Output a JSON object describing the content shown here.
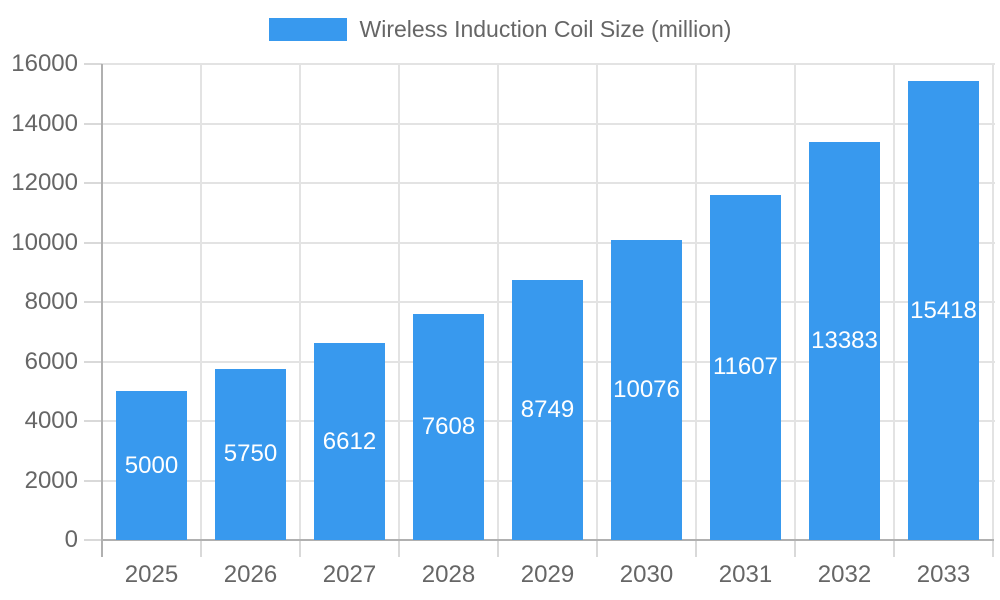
{
  "chart_data": {
    "type": "bar",
    "title": "Wireless Induction Coil Size (million)",
    "categories": [
      "2025",
      "2026",
      "2027",
      "2028",
      "2029",
      "2030",
      "2031",
      "2032",
      "2033"
    ],
    "series": [
      {
        "name": "Wireless Induction Coil Size (million)",
        "values": [
          5000,
          5750,
          6612,
          7608,
          8749,
          10076,
          11607,
          13383,
          15418
        ]
      }
    ],
    "value_labels": [
      "5000",
      "5750",
      "6612",
      "7608",
      "8749",
      "10076",
      "11607",
      "13383",
      "15418"
    ],
    "xlabel": "",
    "ylabel": "",
    "ylim": [
      0,
      16000
    ],
    "ytick_step": 2000,
    "ytick_labels": [
      "0",
      "2000",
      "4000",
      "6000",
      "8000",
      "10000",
      "12000",
      "14000",
      "16000"
    ],
    "grid": true,
    "legend_position": "top",
    "colors": {
      "bar": "#3899ee",
      "axis_text": "#666666",
      "value_text": "#ffffff",
      "gridline": "#e3e3e3",
      "tick": "#d9d9d9",
      "axis_line": "#b0b0b0",
      "background": "#ffffff"
    }
  }
}
